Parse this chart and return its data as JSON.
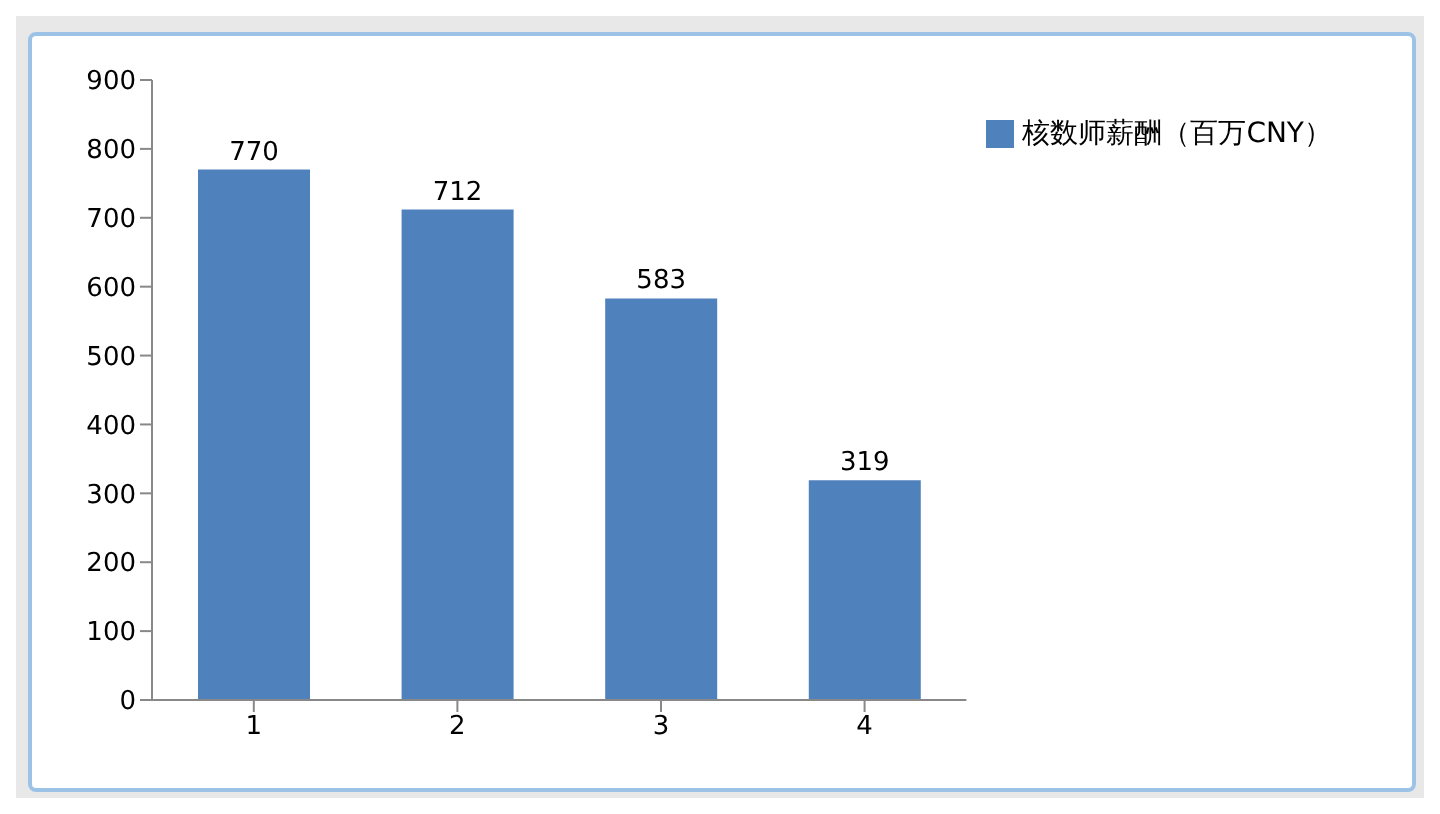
{
  "chart_data": {
    "type": "bar",
    "categories": [
      "1",
      "2",
      "3",
      "4"
    ],
    "series": [
      {
        "name": "核数师薪酬（百万CNY）",
        "color": "#4f81bd",
        "values": [
          770,
          712,
          583,
          319
        ]
      }
    ],
    "ylim": [
      0,
      900
    ],
    "yticks": [
      0,
      100,
      200,
      300,
      400,
      500,
      600,
      700,
      800,
      900
    ],
    "grid": false,
    "legend": "top right",
    "data_labels": true
  }
}
